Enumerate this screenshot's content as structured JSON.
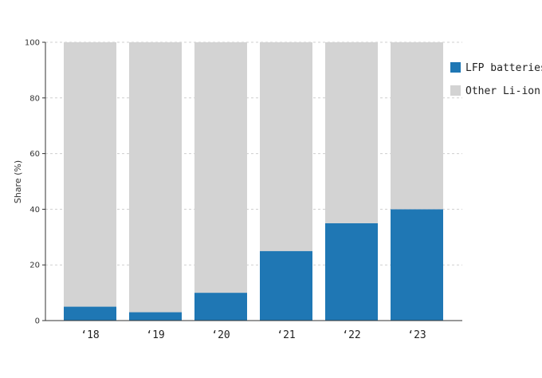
{
  "chart_data": {
    "type": "bar",
    "stacked": true,
    "title": "",
    "xlabel": "",
    "ylabel": "Share (%)",
    "ylim": [
      0,
      100
    ],
    "yticks": [
      0,
      20,
      40,
      60,
      80,
      100
    ],
    "grid": true,
    "legend_position": "top-right",
    "categories": [
      "‘18",
      "‘19",
      "‘20",
      "‘21",
      "‘22",
      "‘23"
    ],
    "series": [
      {
        "name": "LFP batteries",
        "color": "#1f77b4",
        "values": [
          5,
          3,
          10,
          25,
          35,
          40
        ]
      },
      {
        "name": "Other Li-ion",
        "color": "#d3d3d3",
        "values": [
          95,
          97,
          90,
          75,
          65,
          60
        ]
      }
    ]
  }
}
